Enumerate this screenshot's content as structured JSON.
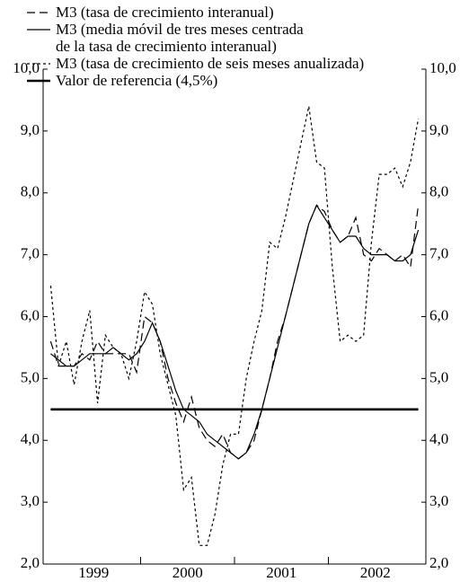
{
  "chart_data": {
    "type": "line",
    "categories": [
      "1999",
      null,
      null,
      null,
      null,
      null,
      null,
      null,
      null,
      null,
      null,
      null,
      "2000",
      null,
      null,
      null,
      null,
      null,
      null,
      null,
      null,
      null,
      null,
      null,
      "2001",
      null,
      null,
      null,
      null,
      null,
      null,
      null,
      null,
      null,
      null,
      null,
      "2002",
      null,
      null,
      null,
      null,
      null,
      null,
      null,
      null,
      null,
      null,
      null
    ],
    "series": [
      {
        "name": "M3 (tasa de crecimiento interanual)",
        "color": "#000000",
        "style": "dashed",
        "values": [
          5.6,
          5.2,
          5.2,
          5.2,
          5.4,
          5.3,
          5.6,
          5.4,
          5.4,
          5.4,
          5.4,
          5.1,
          6.0,
          5.9,
          5.6,
          5.0,
          4.6,
          4.3,
          4.7,
          4.2,
          4.0,
          3.9,
          4.1,
          3.8,
          3.7,
          3.8,
          4.0,
          4.5,
          5.0,
          5.6,
          6.0,
          6.5,
          7.0,
          7.5,
          7.8,
          7.7,
          7.4,
          7.2,
          7.3,
          7.6,
          7.0,
          6.9,
          7.1,
          7.0,
          6.9,
          7.0,
          6.8,
          7.8
        ]
      },
      {
        "name": "M3 (media móvil de tres meses centrada\nde la tasa de crecimiento interanual)",
        "color": "#000000",
        "style": "solid",
        "values": [
          5.4,
          5.3,
          5.2,
          5.2,
          5.3,
          5.4,
          5.4,
          5.4,
          5.5,
          5.4,
          5.3,
          5.4,
          5.6,
          5.9,
          5.6,
          5.2,
          4.8,
          4.5,
          4.4,
          4.3,
          4.1,
          4.0,
          3.9,
          3.8,
          3.7,
          3.8,
          4.1,
          4.5,
          5.0,
          5.5,
          6.0,
          6.5,
          7.0,
          7.5,
          7.8,
          7.6,
          7.4,
          7.2,
          7.3,
          7.3,
          7.1,
          7.0,
          7.0,
          7.0,
          6.9,
          6.9,
          7.0,
          7.4
        ]
      },
      {
        "name": "M3 (tasa de crecimiento de seis meses anualizada)",
        "color": "#000000",
        "style": "dotted",
        "values": [
          6.5,
          5.2,
          5.6,
          4.9,
          5.6,
          6.1,
          4.6,
          5.7,
          5.5,
          5.4,
          5.0,
          5.6,
          6.4,
          6.2,
          5.4,
          4.9,
          4.4,
          3.2,
          3.4,
          2.3,
          2.3,
          2.8,
          3.6,
          4.1,
          4.1,
          5.0,
          5.6,
          6.1,
          7.2,
          7.1,
          7.6,
          8.2,
          8.8,
          9.4,
          8.5,
          8.4,
          6.8,
          5.6,
          5.7,
          5.6,
          5.7,
          7.2,
          8.3,
          8.3,
          8.4,
          8.1,
          8.5,
          9.2
        ]
      },
      {
        "name": "Valor de referencia (4,5%)",
        "color": "#000000",
        "style": "thick",
        "values": [
          4.5,
          4.5,
          4.5,
          4.5,
          4.5,
          4.5,
          4.5,
          4.5,
          4.5,
          4.5,
          4.5,
          4.5,
          4.5,
          4.5,
          4.5,
          4.5,
          4.5,
          4.5,
          4.5,
          4.5,
          4.5,
          4.5,
          4.5,
          4.5,
          4.5,
          4.5,
          4.5,
          4.5,
          4.5,
          4.5,
          4.5,
          4.5,
          4.5,
          4.5,
          4.5,
          4.5,
          4.5,
          4.5,
          4.5,
          4.5,
          4.5,
          4.5,
          4.5,
          4.5,
          4.5,
          4.5,
          4.5,
          4.5
        ]
      }
    ],
    "ylim": [
      2,
      10
    ],
    "yticks": [
      {
        "value": 2,
        "label": "2,0"
      },
      {
        "value": 3,
        "label": "3,0"
      },
      {
        "value": 4,
        "label": "4,0"
      },
      {
        "value": 5,
        "label": "5,0"
      },
      {
        "value": 6,
        "label": "6,0"
      },
      {
        "value": 7,
        "label": "7,0"
      },
      {
        "value": 8,
        "label": "8,0"
      },
      {
        "value": 9,
        "label": "9,0"
      },
      {
        "value": 10,
        "label": "10,0"
      }
    ],
    "y2lim": [
      2,
      10
    ],
    "y2ticks": [
      {
        "value": 2,
        "label": "2,0"
      },
      {
        "value": 3,
        "label": "3,0"
      },
      {
        "value": 4,
        "label": "4,0"
      },
      {
        "value": 5,
        "label": "5,0"
      },
      {
        "value": 6,
        "label": "6,0"
      },
      {
        "value": 7,
        "label": "7,0"
      },
      {
        "value": 8,
        "label": "8,0"
      },
      {
        "value": 9,
        "label": "9,0"
      },
      {
        "value": 10,
        "label": "10,0"
      }
    ],
    "legend": "top-left"
  }
}
